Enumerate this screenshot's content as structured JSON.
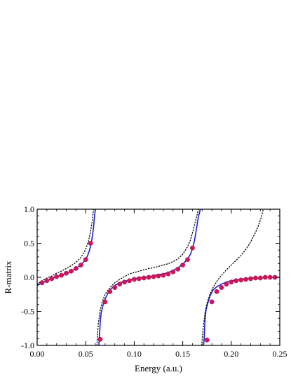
{
  "chart_data": {
    "type": "line",
    "title": "",
    "xlabel": "Energy (a.u.)",
    "ylabel": "R-matrix",
    "xlim": [
      0.0,
      0.25
    ],
    "ylim": [
      -1.0,
      1.0
    ],
    "x_ticks": [
      "0.00",
      "0.05",
      "0.10",
      "0.15",
      "0.20",
      "0.25"
    ],
    "y_ticks": [
      "-1.0",
      "-0.5",
      "0.0",
      "0.5",
      "1.0"
    ],
    "x_tick_values": [
      0.0,
      0.05,
      0.1,
      0.15,
      0.2,
      0.25
    ],
    "y_tick_values": [
      -1.0,
      -0.5,
      0.0,
      0.5,
      1.0
    ],
    "grid": false,
    "legend": "none",
    "series": [
      {
        "style": "solid",
        "color": "#1f1fd6",
        "segments": [
          {
            "x": [
              0.0,
              0.005,
              0.01,
              0.015,
              0.02,
              0.025,
              0.03,
              0.035,
              0.04,
              0.045,
              0.05,
              0.052,
              0.054,
              0.056,
              0.058,
              0.059,
              0.0595,
              0.06
            ],
            "y": [
              -0.12,
              -0.08,
              -0.05,
              -0.02,
              0.01,
              0.03,
              0.06,
              0.09,
              0.13,
              0.18,
              0.26,
              0.32,
              0.4,
              0.52,
              0.72,
              0.88,
              0.95,
              1.0
            ]
          },
          {
            "x": [
              0.0635,
              0.064,
              0.065,
              0.066,
              0.068,
              0.07,
              0.073,
              0.076,
              0.08,
              0.085,
              0.09,
              0.095,
              0.1,
              0.105,
              0.11,
              0.115,
              0.12,
              0.125,
              0.13,
              0.135,
              0.14,
              0.145,
              0.15,
              0.155,
              0.158,
              0.16,
              0.162,
              0.164,
              0.166,
              0.1675,
              0.168
            ],
            "y": [
              -1.0,
              -0.9,
              -0.66,
              -0.52,
              -0.4,
              -0.32,
              -0.23,
              -0.17,
              -0.12,
              -0.08,
              -0.06,
              -0.04,
              -0.02,
              -0.01,
              0.0,
              0.01,
              0.02,
              0.04,
              0.05,
              0.07,
              0.1,
              0.14,
              0.19,
              0.27,
              0.34,
              0.42,
              0.53,
              0.7,
              0.88,
              0.96,
              1.0
            ]
          },
          {
            "x": [
              0.1715,
              0.172,
              0.173,
              0.174,
              0.176,
              0.178,
              0.181,
              0.185,
              0.19,
              0.195,
              0.2,
              0.205,
              0.21,
              0.215,
              0.22,
              0.225,
              0.23,
              0.235,
              0.24,
              0.245,
              0.25
            ],
            "y": [
              -1.0,
              -0.92,
              -0.62,
              -0.48,
              -0.37,
              -0.28,
              -0.19,
              -0.14,
              -0.1,
              -0.07,
              -0.05,
              -0.04,
              -0.03,
              -0.02,
              -0.02,
              -0.01,
              -0.01,
              0.0,
              0.0,
              0.0,
              0.0
            ]
          }
        ]
      },
      {
        "style": "dotted",
        "color": "#000000",
        "segments": [
          {
            "x": [
              0.0,
              0.005,
              0.01,
              0.015,
              0.02,
              0.025,
              0.03,
              0.035,
              0.04,
              0.045,
              0.05,
              0.053,
              0.055,
              0.057,
              0.058
            ],
            "y": [
              -0.1,
              -0.05,
              -0.01,
              0.02,
              0.06,
              0.09,
              0.13,
              0.17,
              0.22,
              0.29,
              0.41,
              0.54,
              0.67,
              0.85,
              1.0
            ]
          },
          {
            "x": [
              0.0615,
              0.063,
              0.065,
              0.067,
              0.07,
              0.075,
              0.08,
              0.085,
              0.09,
              0.095,
              0.1,
              0.105,
              0.11,
              0.115,
              0.12,
              0.125,
              0.13,
              0.135,
              0.14,
              0.145,
              0.15,
              0.155,
              0.158,
              0.161,
              0.163,
              0.165,
              0.166
            ],
            "y": [
              -1.0,
              -0.68,
              -0.48,
              -0.36,
              -0.25,
              -0.15,
              -0.08,
              -0.03,
              0.01,
              0.05,
              0.07,
              0.09,
              0.11,
              0.13,
              0.14,
              0.16,
              0.18,
              0.2,
              0.23,
              0.27,
              0.34,
              0.45,
              0.55,
              0.7,
              0.82,
              0.93,
              1.0
            ]
          },
          {
            "x": [
              0.1695,
              0.171,
              0.173,
              0.175,
              0.178,
              0.182,
              0.186,
              0.19,
              0.195,
              0.2,
              0.205,
              0.21,
              0.215,
              0.22,
              0.225,
              0.228,
              0.231,
              0.233
            ],
            "y": [
              -1.0,
              -0.75,
              -0.52,
              -0.38,
              -0.25,
              -0.13,
              -0.04,
              0.03,
              0.11,
              0.18,
              0.25,
              0.32,
              0.41,
              0.52,
              0.66,
              0.76,
              0.88,
              1.0
            ]
          }
        ]
      },
      {
        "style": "markers",
        "color": "#d4145a",
        "x": [
          0.005,
          0.01,
          0.015,
          0.02,
          0.025,
          0.03,
          0.035,
          0.04,
          0.045,
          0.05,
          0.055,
          0.065,
          0.07,
          0.075,
          0.08,
          0.085,
          0.09,
          0.095,
          0.1,
          0.105,
          0.11,
          0.115,
          0.12,
          0.125,
          0.13,
          0.135,
          0.14,
          0.145,
          0.15,
          0.155,
          0.16,
          0.175,
          0.18,
          0.185,
          0.19,
          0.195,
          0.2,
          0.205,
          0.21,
          0.215,
          0.22,
          0.225,
          0.23,
          0.235,
          0.24,
          0.245
        ],
        "y": [
          -0.08,
          -0.05,
          -0.02,
          0.01,
          0.03,
          0.06,
          0.09,
          0.13,
          0.18,
          0.26,
          0.5,
          -0.91,
          -0.36,
          -0.21,
          -0.15,
          -0.1,
          -0.07,
          -0.05,
          -0.03,
          -0.02,
          -0.01,
          0.0,
          0.01,
          0.02,
          0.03,
          0.05,
          0.08,
          0.12,
          0.18,
          0.26,
          0.43,
          -0.92,
          -0.36,
          -0.21,
          -0.15,
          -0.1,
          -0.07,
          -0.05,
          -0.04,
          -0.03,
          -0.02,
          -0.01,
          -0.01,
          0.0,
          0.0,
          0.0
        ]
      }
    ]
  }
}
